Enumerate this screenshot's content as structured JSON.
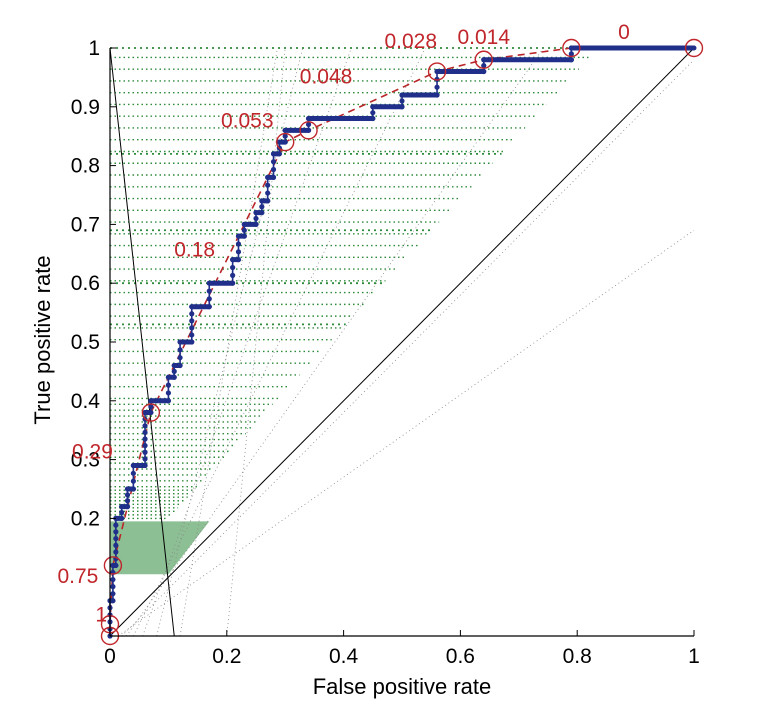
{
  "chart_data": {
    "type": "line",
    "xlabel": "False positive rate",
    "ylabel": "True positive rate",
    "xlim": [
      0,
      1
    ],
    "ylim": [
      0,
      1
    ],
    "x_ticks": [
      "0",
      "0.2",
      "0.4",
      "0.6",
      "0.8",
      "1"
    ],
    "x_tick_values": [
      0,
      0.2,
      0.4,
      0.6,
      0.8,
      1
    ],
    "y_ticks": [
      "0.2",
      "0.3",
      "0.4",
      "0.5",
      "0.6",
      "0.7",
      "0.8",
      "0.9",
      "1"
    ],
    "y_tick_values": [
      0.2,
      0.3,
      0.4,
      0.5,
      0.6,
      0.7,
      0.8,
      0.9,
      1
    ],
    "grid": false,
    "colors": {
      "roc_curve": "#1f2f8a",
      "convex_hull": "#b8262a",
      "threshold_marker": "#c0262b",
      "iso_lines": "#2e8b3a",
      "reference": "#000000"
    },
    "series": [
      {
        "style": "dotted-step",
        "x": [
          0.0,
          0.0,
          0.005,
          0.005,
          0.01,
          0.01,
          0.02,
          0.02,
          0.03,
          0.03,
          0.04,
          0.04,
          0.06,
          0.06,
          0.07,
          0.07,
          0.1,
          0.1,
          0.11,
          0.11,
          0.12,
          0.12,
          0.14,
          0.14,
          0.17,
          0.17,
          0.21,
          0.21,
          0.22,
          0.22,
          0.23,
          0.23,
          0.25,
          0.25,
          0.26,
          0.26,
          0.27,
          0.27,
          0.28,
          0.28,
          0.29,
          0.29,
          0.3,
          0.3,
          0.34,
          0.34,
          0.45,
          0.45,
          0.5,
          0.5,
          0.56,
          0.56,
          0.64,
          0.64,
          0.79,
          0.79,
          1.0
        ],
        "y": [
          0.0,
          0.06,
          0.06,
          0.12,
          0.12,
          0.2,
          0.2,
          0.22,
          0.22,
          0.25,
          0.25,
          0.29,
          0.29,
          0.38,
          0.38,
          0.4,
          0.4,
          0.44,
          0.44,
          0.46,
          0.46,
          0.5,
          0.5,
          0.56,
          0.56,
          0.6,
          0.6,
          0.64,
          0.64,
          0.68,
          0.68,
          0.7,
          0.7,
          0.72,
          0.72,
          0.74,
          0.74,
          0.78,
          0.78,
          0.82,
          0.82,
          0.84,
          0.84,
          0.86,
          0.86,
          0.88,
          0.88,
          0.9,
          0.9,
          0.92,
          0.92,
          0.96,
          0.96,
          0.98,
          0.98,
          1.0,
          1.0
        ]
      },
      {
        "style": "dashed",
        "x": [
          0.0,
          0.0,
          0.005,
          0.07,
          0.3,
          0.34,
          0.56,
          0.64,
          0.79,
          1.0
        ],
        "y": [
          0.0,
          0.02,
          0.12,
          0.38,
          0.84,
          0.86,
          0.96,
          0.98,
          1.0,
          1.0
        ]
      }
    ],
    "threshold_points": [
      {
        "x": 0.0,
        "y": 0.0,
        "label": ""
      },
      {
        "x": 0.0,
        "y": 0.02,
        "label": "1"
      },
      {
        "x": 0.005,
        "y": 0.12,
        "label": "0.75"
      },
      {
        "x": 0.07,
        "y": 0.38,
        "label": "0.29"
      },
      {
        "x": 0.3,
        "y": 0.84,
        "label": "0.053"
      },
      {
        "x": 0.34,
        "y": 0.86,
        "label": "0.048"
      },
      {
        "x": 0.56,
        "y": 0.96,
        "label": "0.028"
      },
      {
        "x": 0.64,
        "y": 0.98,
        "label": "0.014"
      },
      {
        "x": 0.79,
        "y": 1.0,
        "label": "0"
      },
      {
        "x": 1.0,
        "y": 1.0,
        "label": ""
      }
    ],
    "annotations": [
      {
        "text": "0.18",
        "x": 0.11,
        "y": 0.645
      },
      {
        "text": "0.29",
        "x": -0.065,
        "y": 0.302
      },
      {
        "text": "0.75",
        "x": -0.09,
        "y": 0.09
      },
      {
        "text": "1",
        "x": -0.025,
        "y": 0.025
      },
      {
        "text": "0.053",
        "x": 0.19,
        "y": 0.865
      },
      {
        "text": "0.048",
        "x": 0.325,
        "y": 0.94
      },
      {
        "text": "0.028",
        "x": 0.47,
        "y": 1.0
      },
      {
        "text": "0.014",
        "x": 0.595,
        "y": 1.007
      },
      {
        "text": "0",
        "x": 0.87,
        "y": 1.015
      }
    ],
    "reference_lines": [
      {
        "x": [
          0,
          1
        ],
        "y": [
          0,
          1
        ]
      },
      {
        "x": [
          0,
          0.11
        ],
        "y": [
          1,
          0
        ]
      }
    ],
    "iso_performance_lines": {
      "origin_x": [
        0,
        0.1
      ],
      "origin_y": [
        0.2,
        0.2
      ],
      "slopes": [
        0.7,
        1.0,
        1.4,
        2.0,
        2.8,
        4.0,
        6.0,
        10.0
      ]
    }
  }
}
